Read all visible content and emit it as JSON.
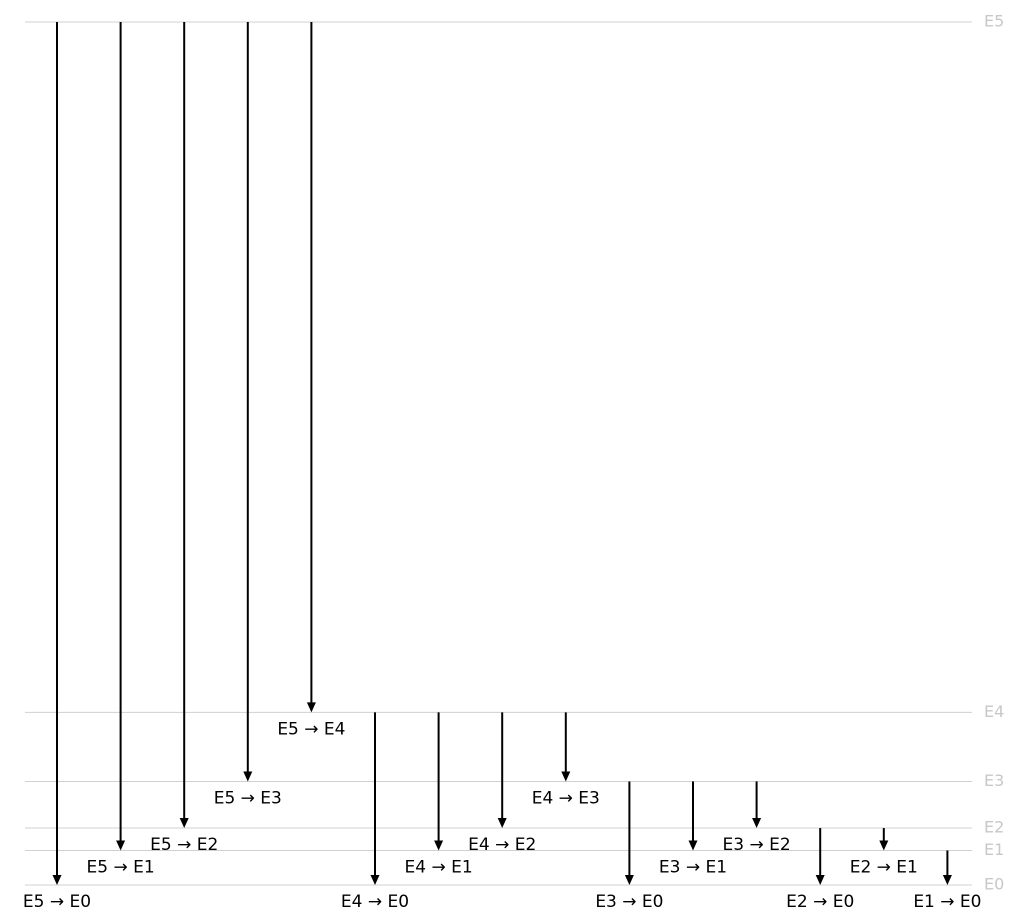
{
  "levels": [
    {
      "name": "E5",
      "energy": 5.0
    },
    {
      "name": "E4",
      "energy": 1.0
    },
    {
      "name": "E3",
      "energy": 0.6
    },
    {
      "name": "E2",
      "energy": 0.33
    },
    {
      "name": "E1",
      "energy": 0.2
    },
    {
      "name": "E0",
      "energy": 0.0
    }
  ],
  "transitions": [
    {
      "from": "E5",
      "to": "E0",
      "label": "E5 → E0"
    },
    {
      "from": "E5",
      "to": "E1",
      "label": "E5 → E1"
    },
    {
      "from": "E5",
      "to": "E2",
      "label": "E5 → E2"
    },
    {
      "from": "E5",
      "to": "E3",
      "label": "E5 → E3"
    },
    {
      "from": "E5",
      "to": "E4",
      "label": "E5 → E4"
    },
    {
      "from": "E4",
      "to": "E0",
      "label": "E4 → E0"
    },
    {
      "from": "E4",
      "to": "E1",
      "label": "E4 → E1"
    },
    {
      "from": "E4",
      "to": "E2",
      "label": "E4 → E2"
    },
    {
      "from": "E4",
      "to": "E3",
      "label": "E4 → E3"
    },
    {
      "from": "E3",
      "to": "E0",
      "label": "E3 → E0"
    },
    {
      "from": "E3",
      "to": "E1",
      "label": "E3 → E1"
    },
    {
      "from": "E3",
      "to": "E2",
      "label": "E3 → E2"
    },
    {
      "from": "E2",
      "to": "E0",
      "label": "E2 → E0"
    },
    {
      "from": "E2",
      "to": "E1",
      "label": "E2 → E1"
    },
    {
      "from": "E1",
      "to": "E0",
      "label": "E1 → E0"
    }
  ],
  "colors": {
    "level_line": "#d0d0d0",
    "level_label": "#c8c8c8",
    "arrow": "#000000",
    "label": "#000000"
  }
}
